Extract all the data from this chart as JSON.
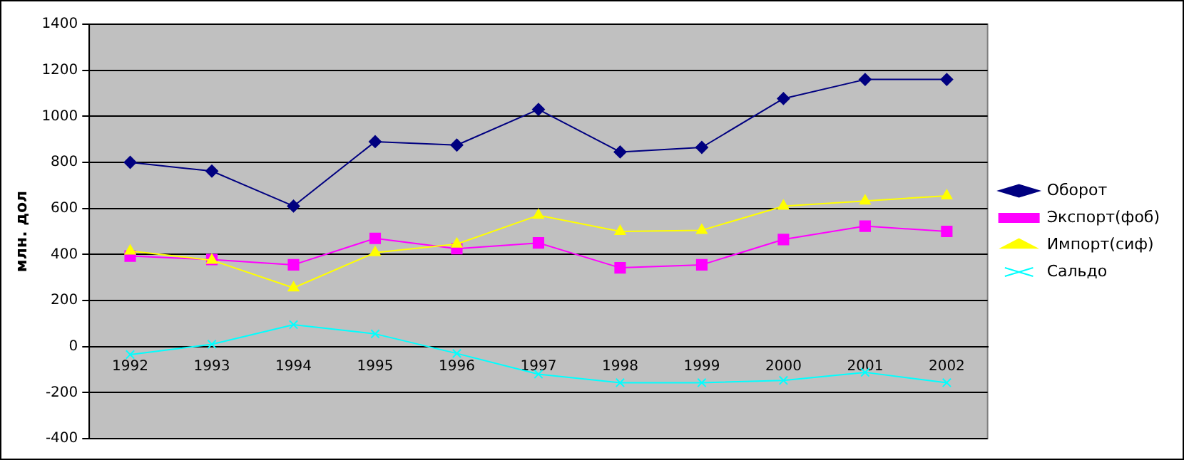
{
  "chart_data": {
    "type": "line",
    "ylabel": "млн. дол",
    "categories": [
      "1992",
      "1993",
      "1994",
      "1995",
      "1996",
      "1997",
      "1998",
      "1999",
      "2000",
      "2001",
      "2002"
    ],
    "series": [
      {
        "name": "Оборот",
        "color": "#000080",
        "marker": "diamond",
        "values": [
          800,
          762,
          610,
          890,
          875,
          1030,
          845,
          865,
          1077,
          1160,
          1160
        ]
      },
      {
        "name": "Экспорт(фоб)",
        "color": "#ff00ff",
        "marker": "square",
        "values": [
          393,
          378,
          355,
          470,
          425,
          450,
          342,
          355,
          465,
          523,
          500
        ]
      },
      {
        "name": "Импорт(сиф)",
        "color": "#ffff00",
        "marker": "triangle",
        "values": [
          415,
          375,
          255,
          408,
          445,
          570,
          500,
          505,
          610,
          632,
          655
        ]
      },
      {
        "name": "Сальдо",
        "color": "#00ffff",
        "marker": "cross",
        "values": [
          -35,
          10,
          95,
          55,
          -30,
          -120,
          -157,
          -157,
          -147,
          -112,
          -157
        ]
      }
    ],
    "ylim": [
      -400,
      1400
    ],
    "yticks": [
      -400,
      -200,
      0,
      200,
      400,
      600,
      800,
      1000,
      1200,
      1400
    ],
    "grid": "y",
    "legend": "right"
  }
}
